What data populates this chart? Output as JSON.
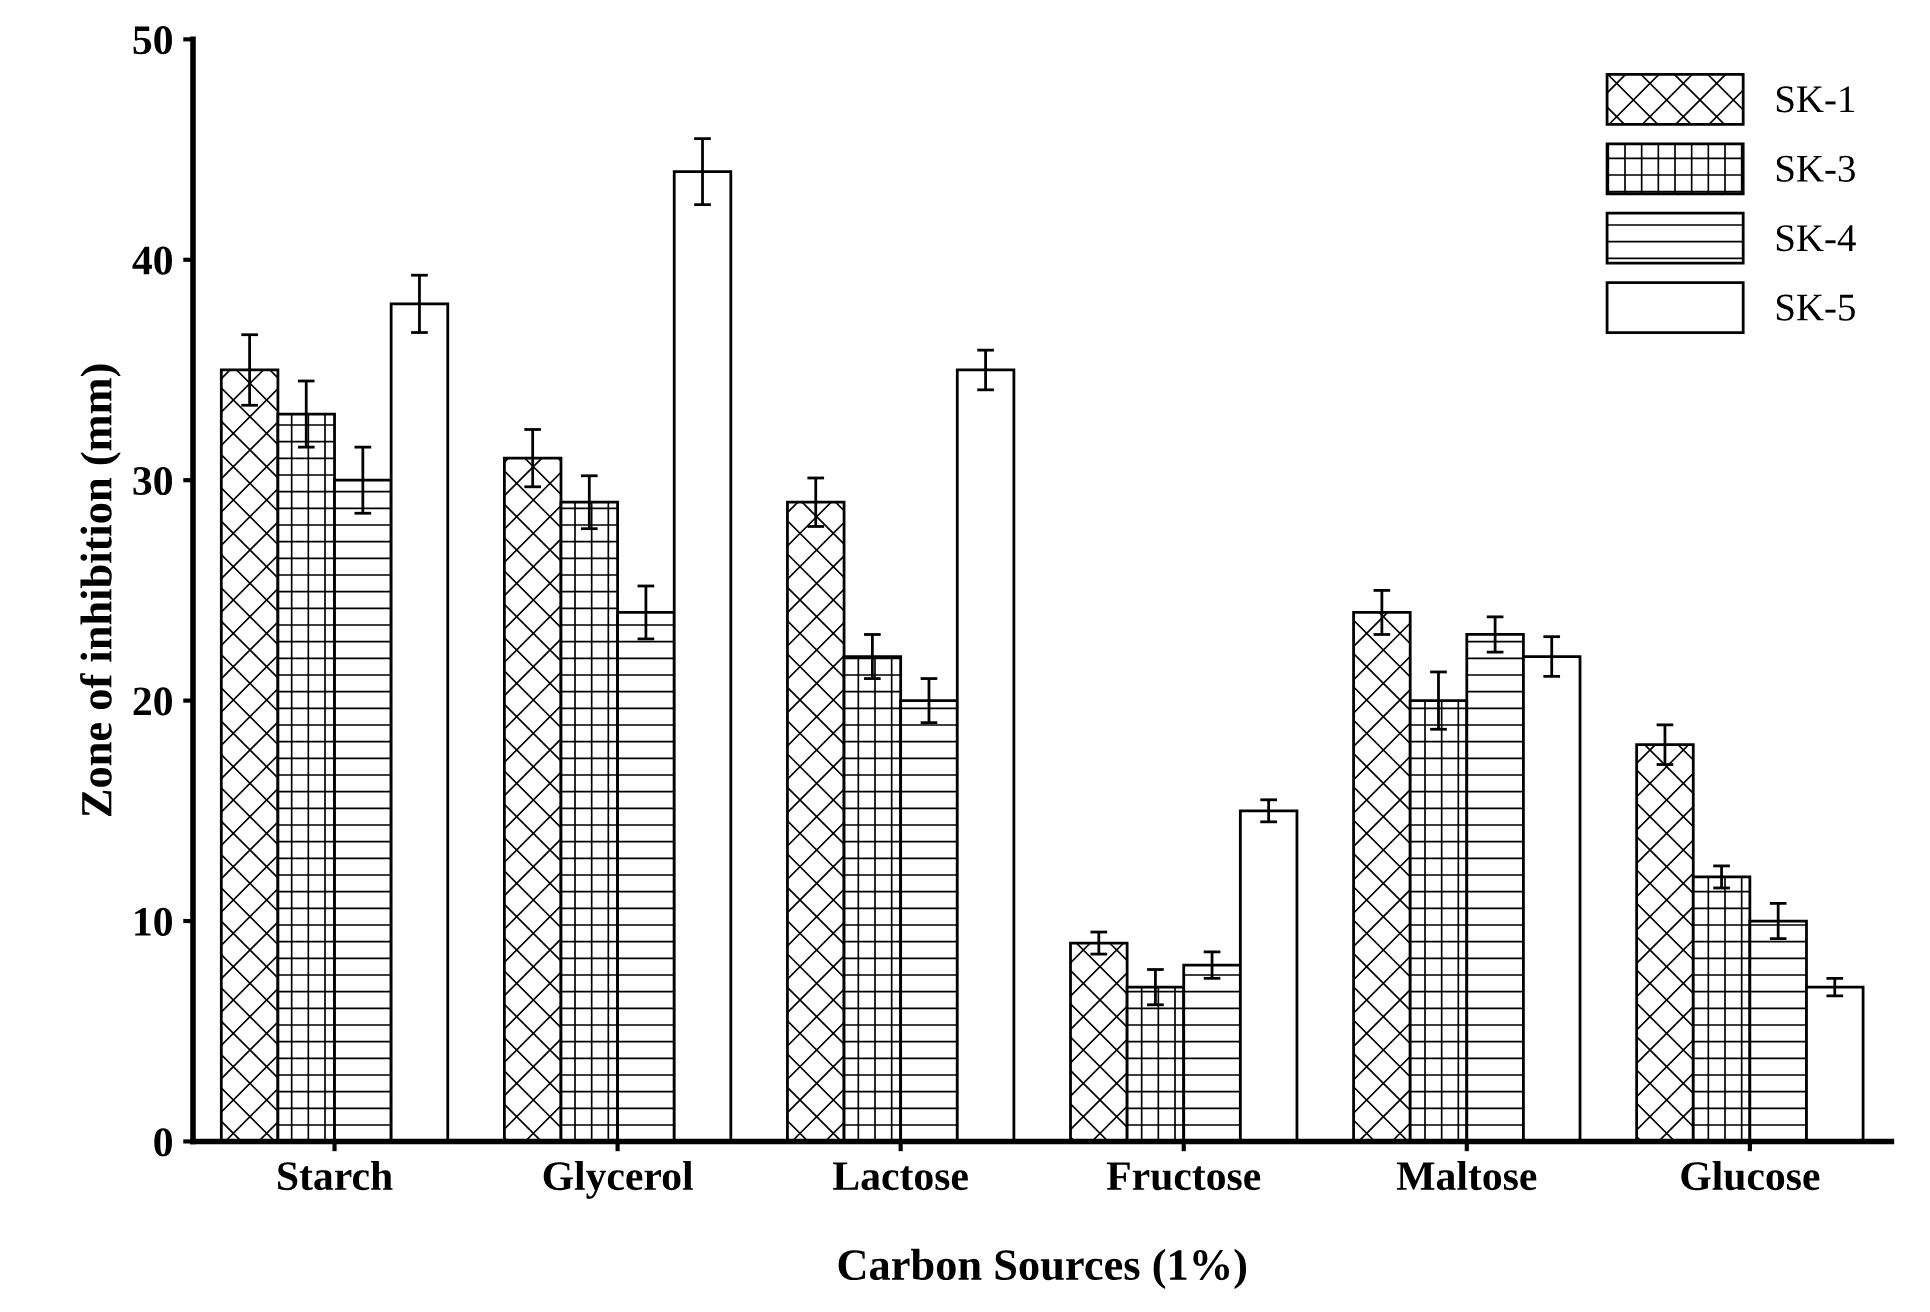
{
  "chart_data": {
    "type": "bar",
    "xlabel": "Carbon Sources (1%)",
    "ylabel": "Zone of inhibition (mm)",
    "categories": [
      "Starch",
      "Glycerol",
      "Lactose",
      "Fructose",
      "Maltose",
      "Glucose"
    ],
    "series": [
      {
        "name": "SK-1",
        "color": "#000000",
        "values": [
          35,
          31,
          29,
          9,
          24,
          18
        ],
        "errors": [
          1.6,
          1.3,
          1.1,
          0.5,
          1.0,
          0.9
        ]
      },
      {
        "name": "SK-3",
        "color": "#000000",
        "values": [
          33,
          29,
          22,
          7,
          20,
          12
        ],
        "errors": [
          1.5,
          1.2,
          1.0,
          0.8,
          1.3,
          0.5
        ]
      },
      {
        "name": "SK-4",
        "color": "#000000",
        "values": [
          30,
          24,
          20,
          8,
          23,
          10
        ],
        "errors": [
          1.5,
          1.2,
          1.0,
          0.6,
          0.8,
          0.8
        ]
      },
      {
        "name": "SK-5",
        "color": "#ffffff",
        "values": [
          38,
          44,
          35,
          15,
          22,
          7
        ],
        "errors": [
          1.3,
          1.5,
          0.9,
          0.5,
          0.9,
          0.4
        ]
      }
    ],
    "ylim": [
      0,
      50
    ],
    "yticks": [
      0,
      10,
      20,
      30,
      40,
      50
    ],
    "grid": false,
    "legend": "top right"
  }
}
